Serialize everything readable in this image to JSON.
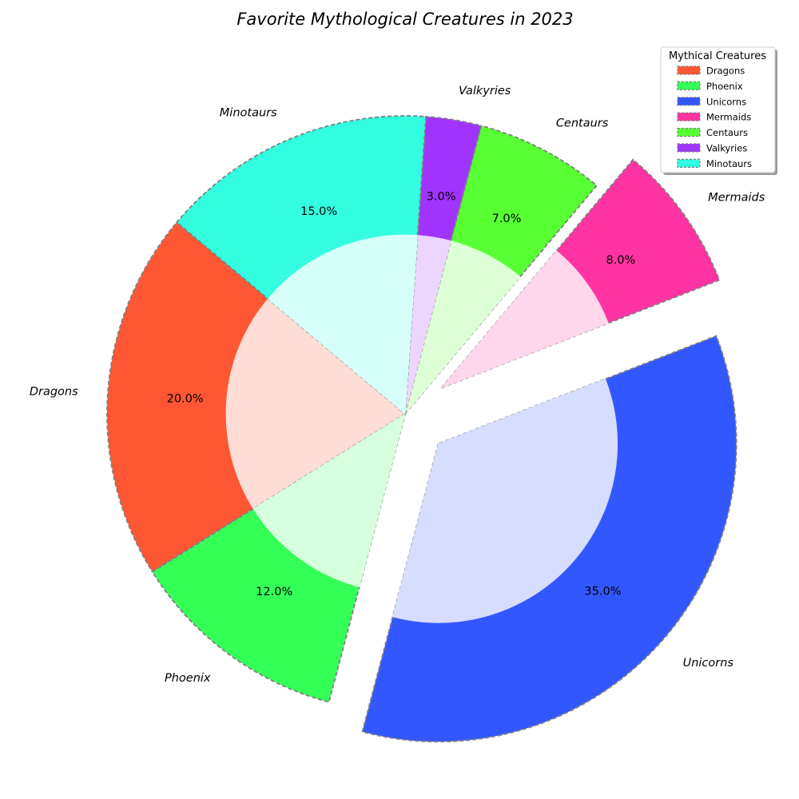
{
  "chart_data": {
    "type": "pie",
    "title": "Favorite Mythological Creatures in 2023",
    "categories": [
      "Dragons",
      "Phoenix",
      "Unicorns",
      "Mermaids",
      "Centaurs",
      "Valkyries",
      "Minotaurs"
    ],
    "values": [
      20,
      12,
      35,
      8,
      7,
      3,
      15
    ],
    "value_labels": [
      "20.0%",
      "12.0%",
      "35.0%",
      "8.0%",
      "7.0%",
      "3.0%",
      "15.0%"
    ],
    "colors": [
      "#ff5733",
      "#33ff57",
      "#3357ff",
      "#ff33a1",
      "#57ff33",
      "#a133ff",
      "#33ffe0"
    ],
    "exploded": [
      "Unicorns",
      "Mermaids"
    ],
    "start_angle_deg": 140,
    "direction": "counterclockwise",
    "legend": {
      "title": "Mythical Creatures",
      "position": "top-right"
    }
  }
}
